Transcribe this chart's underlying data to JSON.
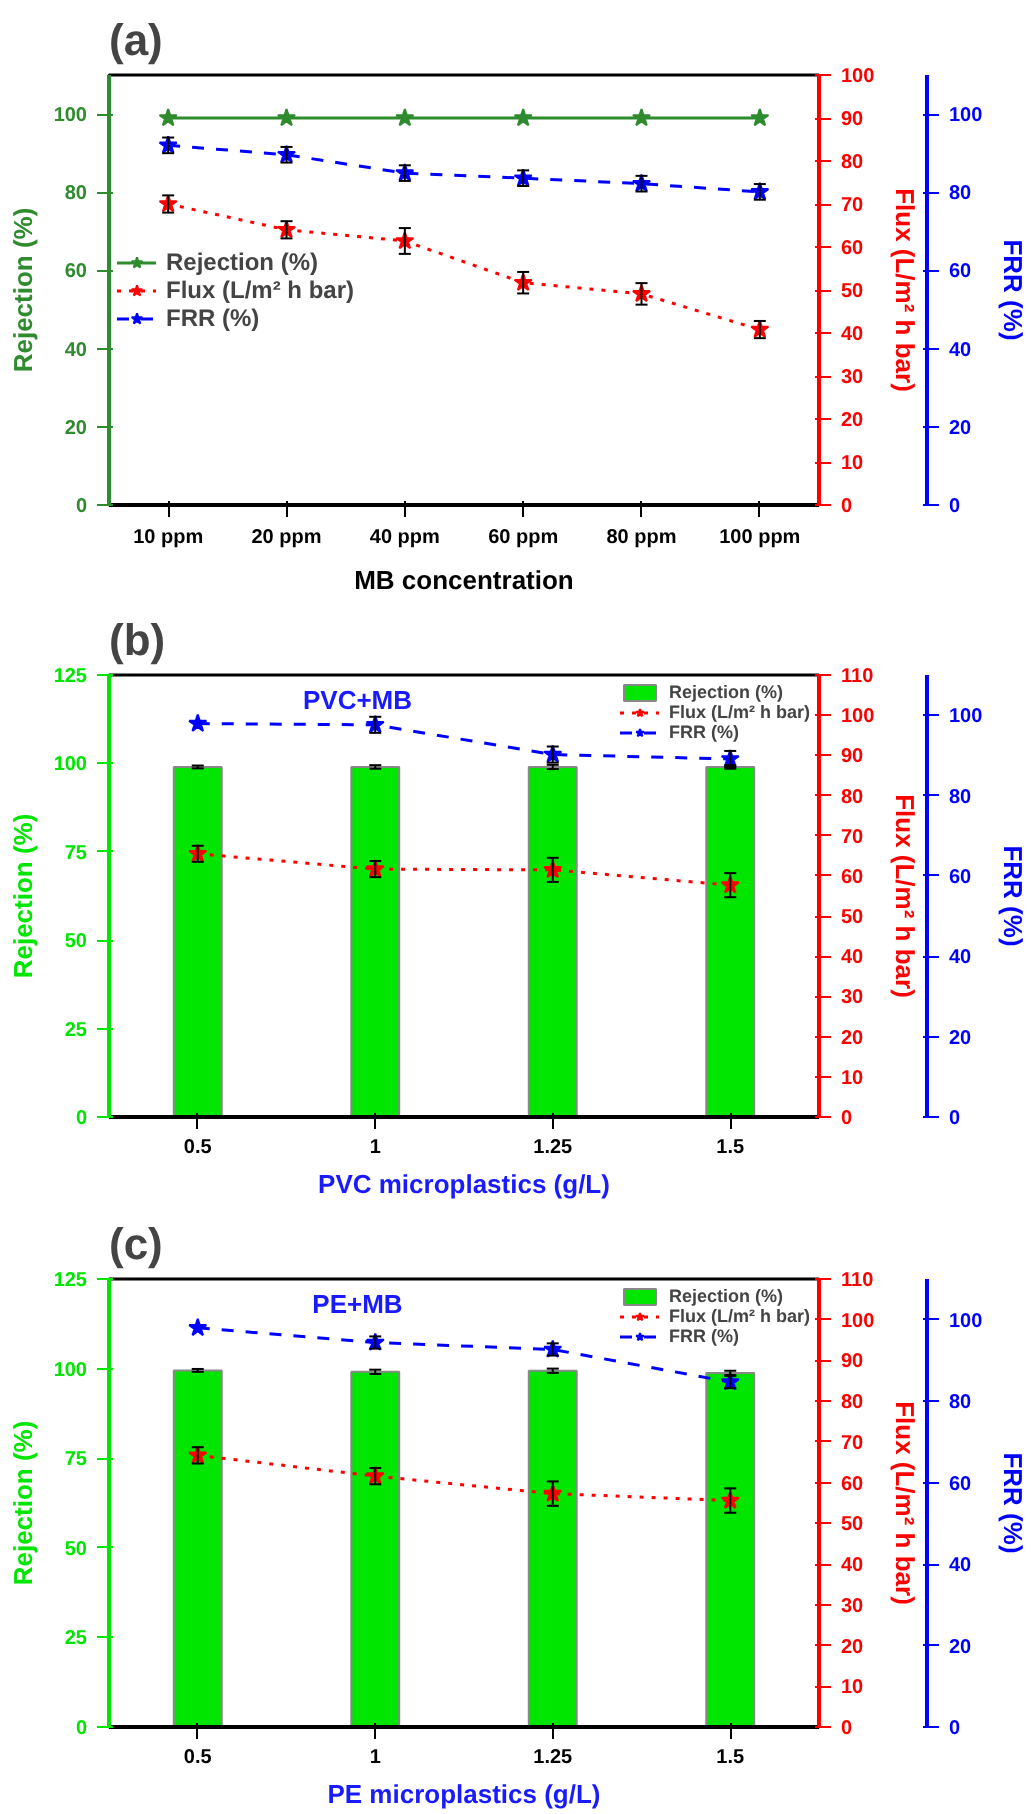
{
  "chart_data": [
    {
      "type": "line",
      "title": "(a)",
      "xlabel": "MB concentration",
      "ylabel": "Rejection (%)",
      "y2label": "Flux (L/m² h bar)",
      "y3label": "FRR (%)",
      "categories": [
        "10 ppm",
        "20 ppm",
        "40 ppm",
        "60 ppm",
        "80 ppm",
        "100 ppm"
      ],
      "ylim": [
        0,
        110
      ],
      "yticks": [
        0,
        20,
        40,
        60,
        80,
        100
      ],
      "y2lim": [
        0,
        100
      ],
      "y2ticks": [
        0,
        10,
        20,
        30,
        40,
        50,
        60,
        70,
        80,
        90,
        100
      ],
      "y3lim": [
        0,
        110
      ],
      "y3ticks": [
        0,
        20,
        40,
        60,
        80,
        100
      ],
      "grid": false,
      "legend": "center left",
      "series": [
        {
          "name": "Rejection (%)",
          "color": "#2e8b2e",
          "values": [
            99,
            99,
            99,
            99,
            99,
            99
          ],
          "marker": "star",
          "line_style": "solid"
        },
        {
          "name": "Flux (L/m² h bar)",
          "axis": "y2",
          "color": "#ff0000",
          "values": [
            70,
            64,
            61.4,
            51.7,
            49.1,
            40.8
          ],
          "errors": [
            2,
            2,
            3,
            2.5,
            2.5,
            2
          ],
          "marker": "star",
          "line_style": "dotted"
        },
        {
          "name": "FRR (%)",
          "axis": "y3",
          "color": "#0000ff",
          "values": [
            92,
            89.6,
            84.9,
            83.6,
            82.2,
            80.1
          ],
          "errors": [
            2,
            2,
            2,
            2,
            2,
            2
          ],
          "marker": "star",
          "line_style": "dashed"
        }
      ]
    },
    {
      "type": "bar",
      "title": "(b)",
      "subtitle": "PVC+MB",
      "xlabel": "PVC microplastics (g/L)",
      "ylabel": "Rejection (%)",
      "y2label": "Flux (L/m² h bar)",
      "y3label": "FRR (%)",
      "categories": [
        "0.5",
        "1",
        "1.25",
        "1.5"
      ],
      "ylim": [
        0,
        125
      ],
      "yticks": [
        0,
        25,
        50,
        75,
        100,
        125
      ],
      "y2lim": [
        0,
        110
      ],
      "y2ticks": [
        0,
        10,
        20,
        30,
        40,
        50,
        60,
        70,
        80,
        90,
        100,
        110
      ],
      "y3lim": [
        0,
        110
      ],
      "y3ticks": [
        0,
        20,
        40,
        60,
        80,
        100
      ],
      "grid": false,
      "legend": "top right",
      "series": [
        {
          "name": "Rejection (%)",
          "color": "#00e600",
          "values": [
            99,
            99,
            99,
            99
          ],
          "errors": [
            0.4,
            0.5,
            0.6,
            0.5
          ]
        },
        {
          "name": "Flux (L/m² h bar)",
          "type": "line",
          "axis": "y2",
          "color": "#ff0000",
          "values": [
            65.5,
            61.7,
            61.5,
            57.7
          ],
          "errors": [
            2,
            2,
            3,
            3
          ],
          "marker": "star",
          "line_style": "dotted"
        },
        {
          "name": "FRR (%)",
          "type": "line",
          "axis": "y3",
          "color": "#0000ff",
          "values": [
            97.9,
            97.6,
            90.2,
            89.1
          ],
          "errors": [
            null,
            2,
            2,
            2
          ],
          "marker": "star",
          "line_style": "dashed"
        }
      ]
    },
    {
      "type": "bar",
      "title": "(c)",
      "subtitle": "PE+MB",
      "xlabel": "PE microplastics (g/L)",
      "ylabel": "Rejection (%)",
      "y2label": "Flux (L/m² h bar)",
      "y3label": "FRR (%)",
      "categories": [
        "0.5",
        "1",
        "1.25",
        "1.5"
      ],
      "ylim": [
        0,
        125
      ],
      "yticks": [
        0,
        25,
        50,
        75,
        100,
        125
      ],
      "y2lim": [
        0,
        110
      ],
      "y2ticks": [
        0,
        10,
        20,
        30,
        40,
        50,
        60,
        70,
        80,
        90,
        100,
        110
      ],
      "y3lim": [
        0,
        110
      ],
      "y3ticks": [
        0,
        20,
        40,
        60,
        80,
        100
      ],
      "grid": false,
      "legend": "top right",
      "series": [
        {
          "name": "Rejection (%)",
          "color": "#00e600",
          "values": [
            99.5,
            99.1,
            99.4,
            98.8
          ],
          "errors": [
            0.4,
            0.6,
            0.6,
            0.6
          ]
        },
        {
          "name": "Flux (L/m² h bar)",
          "type": "line",
          "axis": "y2",
          "color": "#ff0000",
          "values": [
            66.7,
            61.6,
            57.3,
            55.6
          ],
          "errors": [
            2,
            2,
            3,
            3
          ],
          "marker": "star",
          "line_style": "dotted"
        },
        {
          "name": "FRR (%)",
          "type": "line",
          "axis": "y3",
          "color": "#0000ff",
          "values": [
            98,
            94.4,
            92.7,
            84.7
          ],
          "errors": [
            null,
            1.5,
            1.5,
            1.5
          ],
          "marker": "star",
          "line_style": "dashed"
        }
      ]
    }
  ]
}
